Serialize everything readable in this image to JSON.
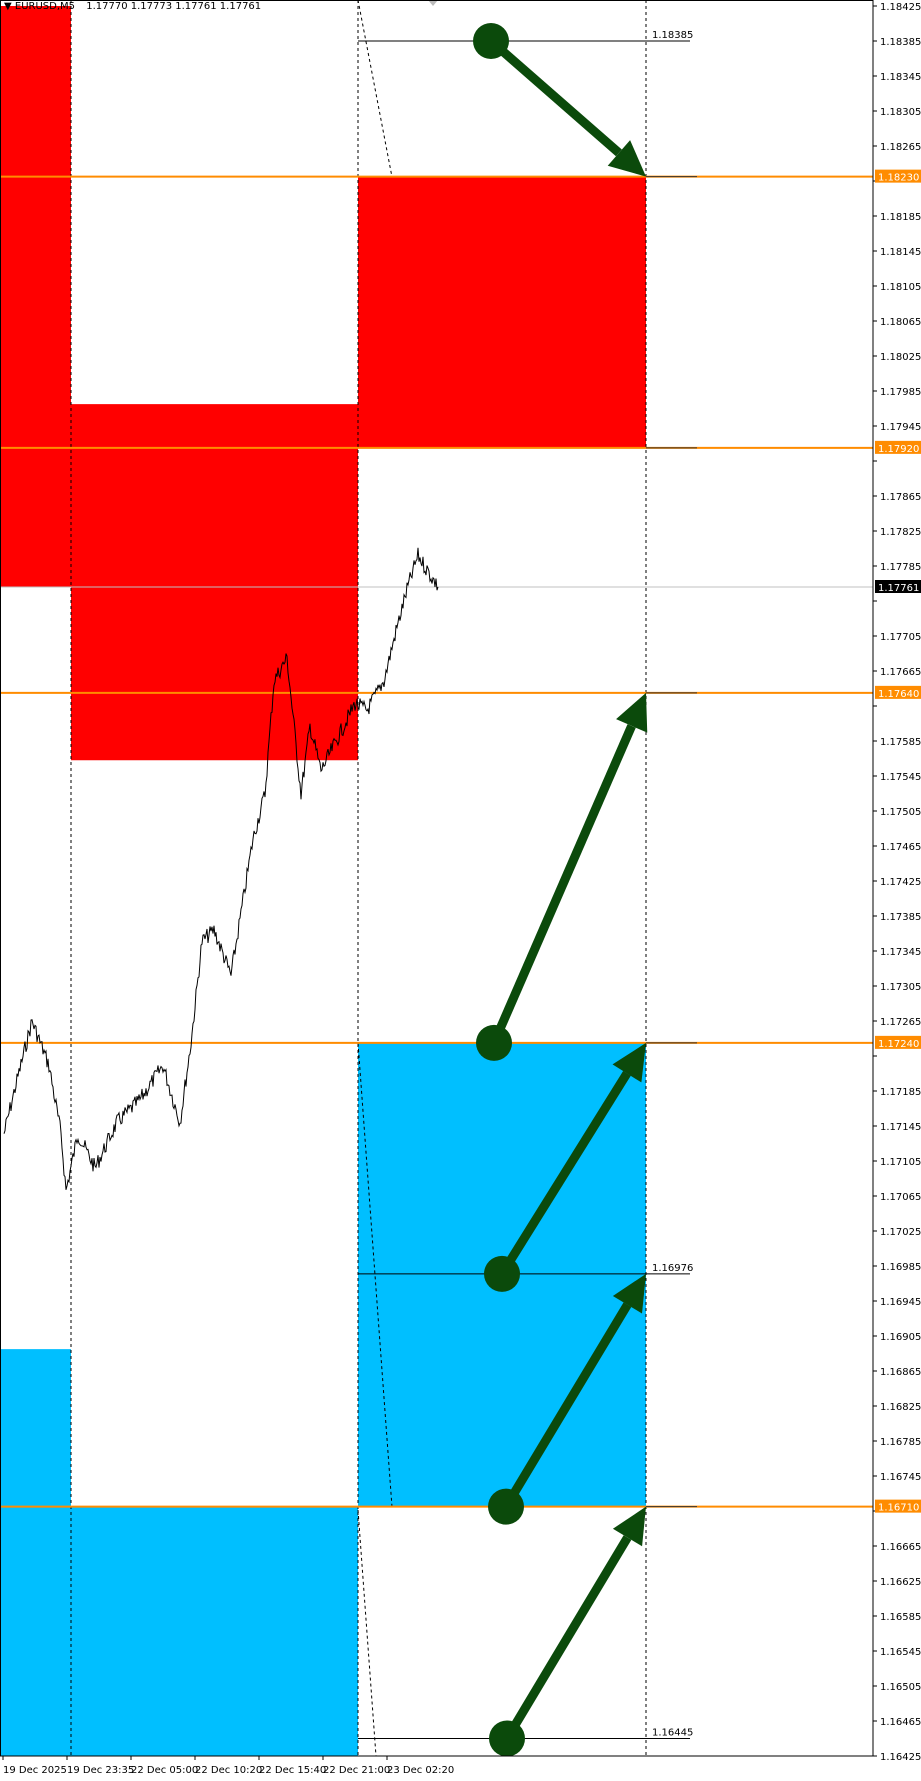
{
  "header": {
    "symbol": "EURUSD,M5",
    "ohlc": "1.17770 1.17773 1.17761 1.17761"
  },
  "colors": {
    "supply_zone": "#ff0000",
    "demand_zone": "#00bfff",
    "level_line": "#ff8c00",
    "arrow": "#0b4a0b",
    "price_line": "#000000"
  },
  "chart_data": {
    "type": "line",
    "ylim": [
      1.16425,
      1.18425
    ],
    "ytick_step": 0.0004,
    "xticks": [
      "19 Dec 2025",
      "19 Dec 23:35",
      "22 Dec 05:00",
      "22 Dec 10:20",
      "22 Dec 15:40",
      "22 Dec 21:00",
      "23 Dec 02:20"
    ],
    "current_price": "1.17761",
    "series": [
      {
        "values": [
          [
            "19 Dec 18:00",
            1.17136
          ],
          [
            "19 Dec 18:55",
            1.17188
          ],
          [
            "19 Dec 20:20",
            1.17265
          ],
          [
            "19 Dec 21:45",
            1.17214
          ],
          [
            "19 Dec 22:45",
            1.17136
          ],
          [
            "19 Dec 23:10",
            1.17071
          ],
          [
            "22 Dec 00:10",
            1.17136
          ],
          [
            "22 Dec 01:35",
            1.17097
          ],
          [
            "22 Dec 03:25",
            1.17149
          ],
          [
            "22 Dec 05:20",
            1.17175
          ],
          [
            "22 Dec 07:15",
            1.17214
          ],
          [
            "22 Dec 08:40",
            1.17149
          ],
          [
            "22 Dec 09:35",
            1.1724
          ],
          [
            "22 Dec 10:30",
            1.17356
          ],
          [
            "22 Dec 11:30",
            1.17369
          ],
          [
            "22 Dec 12:55",
            1.17317
          ],
          [
            "22 Dec 13:50",
            1.17395
          ],
          [
            "22 Dec 14:45",
            1.17473
          ],
          [
            "22 Dec 15:45",
            1.17525
          ],
          [
            "22 Dec 16:30",
            1.17654
          ],
          [
            "22 Dec 17:35",
            1.1768
          ],
          [
            "22 Dec 18:45",
            1.17525
          ],
          [
            "22 Dec 19:30",
            1.17602
          ],
          [
            "22 Dec 20:25",
            1.17551
          ],
          [
            "22 Dec 21:50",
            1.17589
          ],
          [
            "22 Dec 23:15",
            1.17628
          ],
          [
            "23 Dec 00:15",
            1.1762
          ],
          [
            "23 Dec 01:40",
            1.17654
          ],
          [
            "23 Dec 02:35",
            1.17706
          ],
          [
            "23 Dec 03:35",
            1.17758
          ],
          [
            "23 Dec 04:30",
            1.17797
          ],
          [
            "23 Dec 05:25",
            1.17777
          ],
          [
            "23 Dec 06:10",
            1.17761
          ]
        ]
      }
    ],
    "zones": [
      {
        "kind": "supply",
        "from": "19 Dec 2025",
        "to": "19 Dec 23:35",
        "top": 1.18425,
        "bottom": 1.17761
      },
      {
        "kind": "supply",
        "from": "19 Dec 23:35",
        "to": "22 Dec 21:00",
        "top": 1.1797,
        "bottom": 1.17563
      },
      {
        "kind": "supply",
        "from": "22 Dec 21:00",
        "to": "23 Dec 06:00",
        "top": 1.1823,
        "bottom": 1.1792
      },
      {
        "kind": "demand",
        "from": "22 Dec 21:00",
        "to": "23 Dec 06:00",
        "top": 1.1724,
        "bottom": 1.1671
      },
      {
        "kind": "demand",
        "from": "19 Dec 2025",
        "to": "19 Dec 23:35",
        "top": 1.1689,
        "bottom": 1.16425
      },
      {
        "kind": "demand",
        "from": "19 Dec 23:35",
        "to": "22 Dec 21:00",
        "top": 1.1671,
        "bottom": 1.16425
      }
    ],
    "levels": [
      "1.18230",
      "1.17920",
      "1.17640",
      "1.17240",
      "1.16710"
    ],
    "target_lines": [
      "1.18385",
      "1.16976",
      "1.16445"
    ],
    "arrows": [
      {
        "from": 1.18385,
        "to": 1.1823
      },
      {
        "from": 1.1724,
        "to": 1.1764
      },
      {
        "from": 1.16976,
        "to": 1.1724
      },
      {
        "from": 1.1671,
        "to": 1.16976
      },
      {
        "from": 1.16445,
        "to": 1.1671
      }
    ]
  }
}
